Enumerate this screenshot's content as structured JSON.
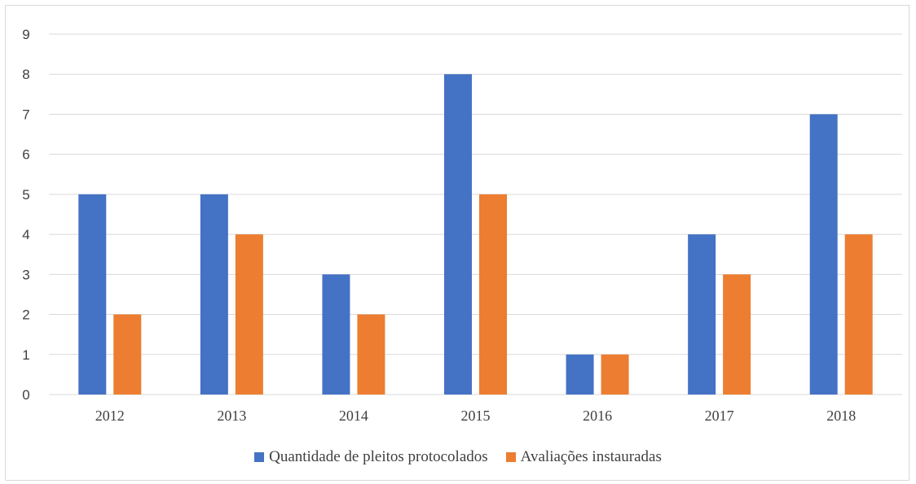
{
  "colors": {
    "series1": "#4472C4",
    "series2": "#ED7D31",
    "gridline": "#d9d9d9",
    "axis_text": "#404040"
  },
  "chart_data": {
    "type": "bar",
    "title": "",
    "xlabel": "",
    "ylabel": "",
    "categories": [
      "2012",
      "2013",
      "2014",
      "2015",
      "2016",
      "2017",
      "2018"
    ],
    "series": [
      {
        "name": "Quantidade de pleitos protocolados",
        "values": [
          5,
          5,
          3,
          8,
          1,
          4,
          7
        ]
      },
      {
        "name": "Avaliações instauradas",
        "values": [
          2,
          4,
          2,
          5,
          1,
          3,
          4
        ]
      }
    ],
    "ylim": [
      0,
      9
    ],
    "yticks": [
      "0",
      "1",
      "2",
      "3",
      "4",
      "5",
      "6",
      "7",
      "8",
      "9"
    ],
    "grid": true,
    "legend_position": "bottom"
  }
}
